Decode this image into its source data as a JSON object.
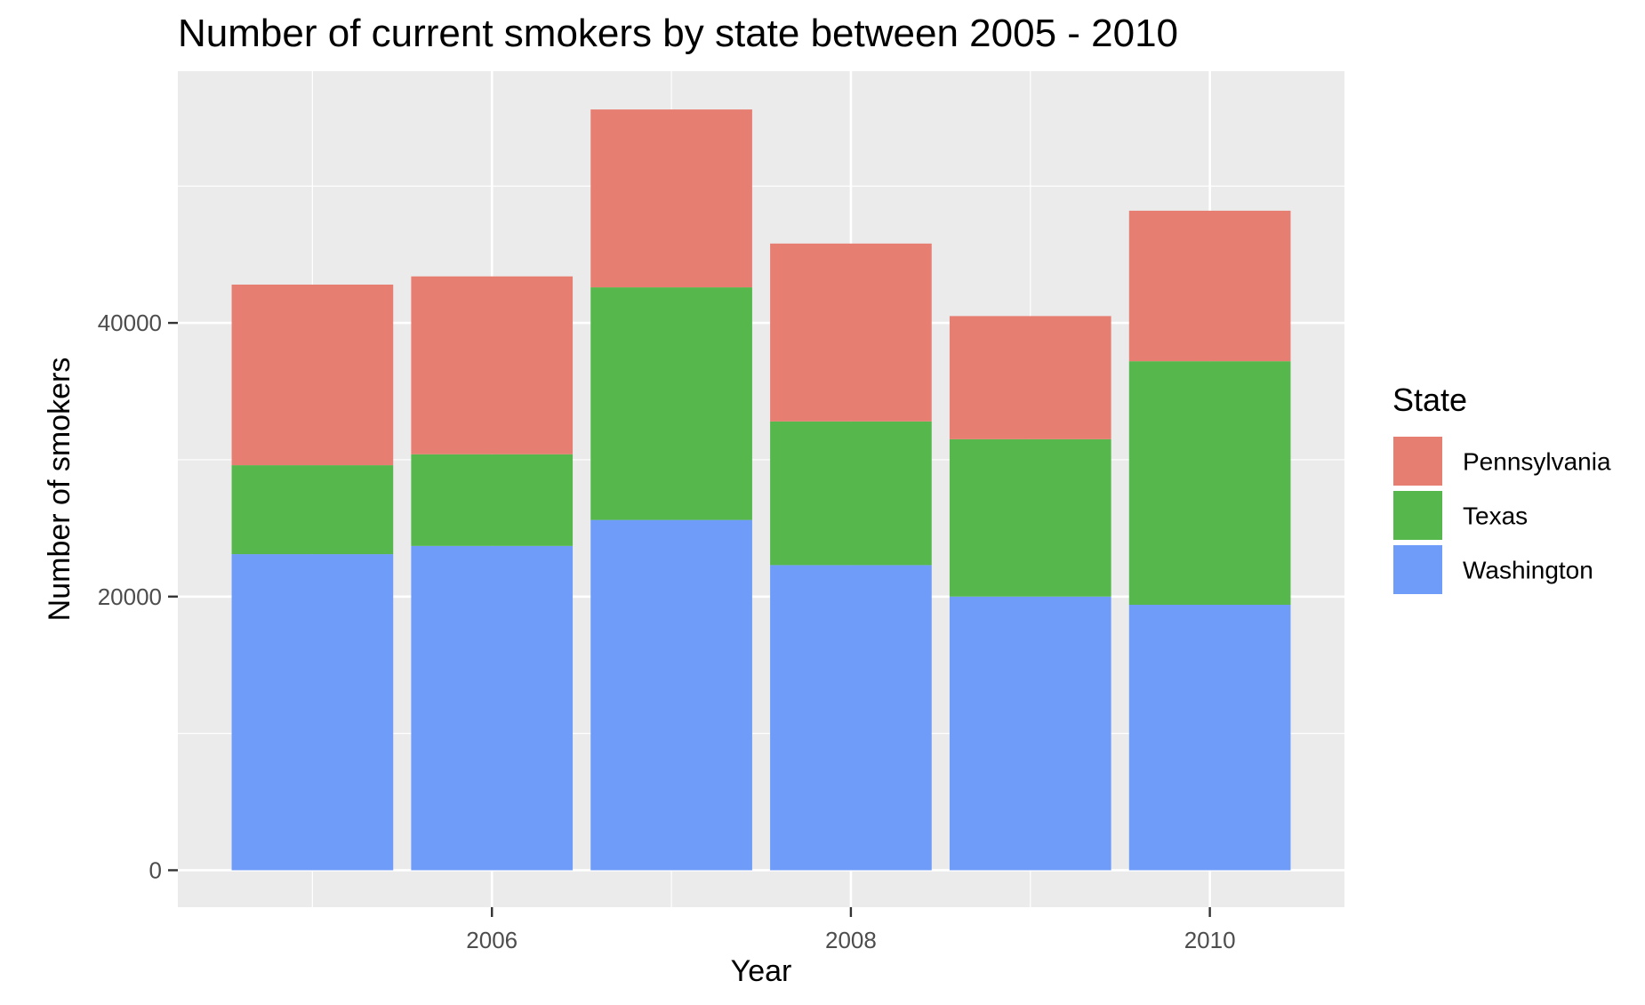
{
  "chart_data": {
    "type": "bar",
    "stacked": true,
    "title": "Number of current smokers by state between 2005 - 2010",
    "xlabel": "Year",
    "ylabel": "Number of smokers",
    "x": [
      2005,
      2006,
      2007,
      2008,
      2009,
      2010
    ],
    "x_ticks": [
      "2006",
      "2008",
      "2010"
    ],
    "y_ticks": [
      "0",
      "20000",
      "40000"
    ],
    "ylim": [
      -2700,
      58400
    ],
    "xlim": [
      2004.25,
      2010.75
    ],
    "grid": true,
    "legend": {
      "title": "State",
      "position": "right"
    },
    "series": [
      {
        "name": "Washington",
        "color": "#6e9cf8",
        "values": [
          23100,
          23700,
          25600,
          22300,
          20000,
          19400
        ]
      },
      {
        "name": "Texas",
        "color": "#55b74c",
        "values": [
          6500,
          6700,
          17000,
          10500,
          11500,
          17800
        ]
      },
      {
        "name": "Pennsylvania",
        "color": "#e77e72",
        "values": [
          13200,
          13000,
          13000,
          13000,
          9000,
          11000
        ]
      }
    ],
    "legend_order": [
      "Pennsylvania",
      "Texas",
      "Washington"
    ]
  }
}
